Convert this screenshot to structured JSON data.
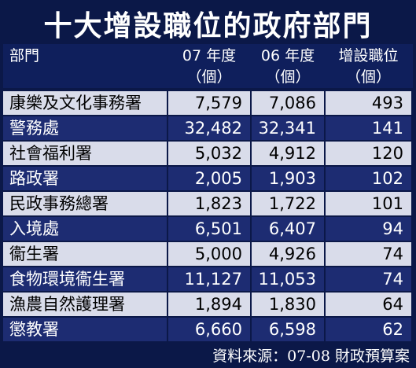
{
  "title": "十大增設職位的政府部門",
  "columns": [
    {
      "label": "部門"
    },
    {
      "label": "07 年度",
      "unit": "（個）"
    },
    {
      "label": "06 年度",
      "unit": "（個）"
    },
    {
      "label": "增設職位",
      "unit": "（個）"
    }
  ],
  "rows": [
    [
      "康樂及文化事務署",
      "7,579",
      "7,086",
      "493"
    ],
    [
      "警務處",
      "32,482",
      "32,341",
      "141"
    ],
    [
      "社會福利署",
      "5,032",
      "4,912",
      "120"
    ],
    [
      "路政署",
      "2,005",
      "1,903",
      "102"
    ],
    [
      "民政事務總署",
      "1,823",
      "1,722",
      "101"
    ],
    [
      "入境處",
      "6,501",
      "6,407",
      "94"
    ],
    [
      "衞生署",
      "5,000",
      "4,926",
      "74"
    ],
    [
      "食物環境衞生署",
      "11,127",
      "11,053",
      "74"
    ],
    [
      "漁農自然護理署",
      "1,894",
      "1,830",
      "64"
    ],
    [
      "懲教署",
      "6,660",
      "6,598",
      "62"
    ]
  ],
  "source": "資料來源：07-08 財政預算案"
}
